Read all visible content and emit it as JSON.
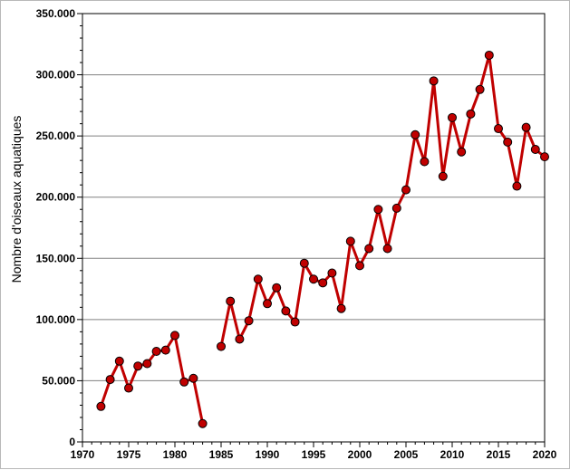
{
  "chart_data": {
    "type": "line",
    "title": "",
    "xlabel": "",
    "ylabel": "Nombre d'oiseaux aquatiques",
    "xlim": [
      1970,
      2020
    ],
    "ylim": [
      0,
      350000
    ],
    "x_ticks": [
      1970,
      1975,
      1980,
      1985,
      1990,
      1995,
      2000,
      2005,
      2010,
      2015,
      2020
    ],
    "y_ticks": [
      0,
      50000,
      100000,
      150000,
      200000,
      250000,
      300000,
      350000
    ],
    "x_tick_labels": [
      "1970",
      "1975",
      "1980",
      "1985",
      "1990",
      "1995",
      "2000",
      "2005",
      "2010",
      "2015",
      "2020"
    ],
    "y_tick_labels": [
      "0",
      "50.000",
      "100.000",
      "150.000",
      "200.000",
      "250.000",
      "300.000",
      "350.000"
    ],
    "grid": "horizontal",
    "colors": {
      "line": "#c00000",
      "marker_fill": "#c00000",
      "marker_edge": "#000000",
      "grid": "#808080"
    },
    "series": [
      {
        "x": [
          1972,
          1973,
          1974,
          1975,
          1976,
          1977,
          1978,
          1979,
          1980,
          1981,
          1982,
          1983
        ],
        "y": [
          29000,
          51000,
          66000,
          44000,
          62000,
          64000,
          74000,
          75000,
          87000,
          49000,
          52000,
          15000
        ]
      },
      {
        "x": [
          1985,
          1986,
          1987,
          1988,
          1989,
          1990,
          1991,
          1992,
          1993,
          1994,
          1995,
          1996,
          1997,
          1998,
          1999,
          2000,
          2001,
          2002,
          2003,
          2004,
          2005,
          2006,
          2007,
          2008,
          2009,
          2010,
          2011,
          2012,
          2013,
          2014,
          2015,
          2016,
          2017,
          2018,
          2019,
          2020
        ],
        "y": [
          78000,
          115000,
          84000,
          99000,
          133000,
          113000,
          126000,
          107000,
          98000,
          146000,
          133000,
          130000,
          138000,
          109000,
          164000,
          144000,
          158000,
          190000,
          158000,
          191000,
          206000,
          251000,
          229000,
          295000,
          217000,
          265000,
          237000,
          268000,
          288000,
          316000,
          256000,
          245000,
          209000,
          257000,
          239000,
          233000
        ]
      }
    ]
  }
}
